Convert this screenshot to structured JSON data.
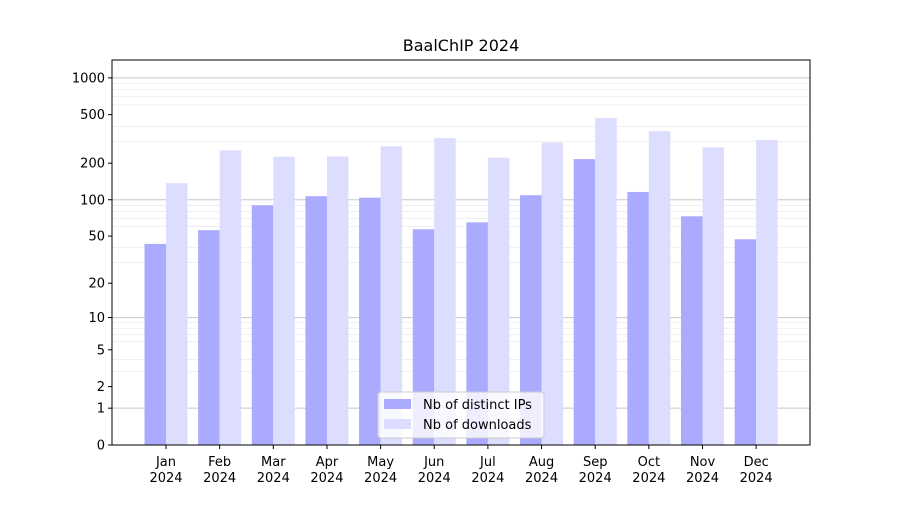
{
  "chart_data": {
    "type": "bar",
    "title": "BaalChIP 2024",
    "xlabel": "",
    "ylabel": "",
    "y_scale": "log(1+y)",
    "ylim": [
      0,
      1400
    ],
    "y_ticks": [
      0,
      1,
      2,
      5,
      10,
      20,
      50,
      100,
      200,
      500,
      1000
    ],
    "grid": true,
    "legend_position": "bottom-center",
    "categories": [
      [
        "Jan",
        "2024"
      ],
      [
        "Feb",
        "2024"
      ],
      [
        "Mar",
        "2024"
      ],
      [
        "Apr",
        "2024"
      ],
      [
        "May",
        "2024"
      ],
      [
        "Jun",
        "2024"
      ],
      [
        "Jul",
        "2024"
      ],
      [
        "Aug",
        "2024"
      ],
      [
        "Sep",
        "2024"
      ],
      [
        "Oct",
        "2024"
      ],
      [
        "Nov",
        "2024"
      ],
      [
        "Dec",
        "2024"
      ]
    ],
    "series": [
      {
        "name": "Nb of distinct IPs",
        "color": "#aaaaff",
        "values": [
          43,
          56,
          90,
          107,
          104,
          57,
          65,
          109,
          216,
          116,
          73,
          47
        ]
      },
      {
        "name": "Nb of downloads",
        "color": "#ddddff",
        "values": [
          137,
          255,
          226,
          227,
          275,
          321,
          222,
          295,
          468,
          366,
          270,
          310
        ]
      }
    ]
  }
}
